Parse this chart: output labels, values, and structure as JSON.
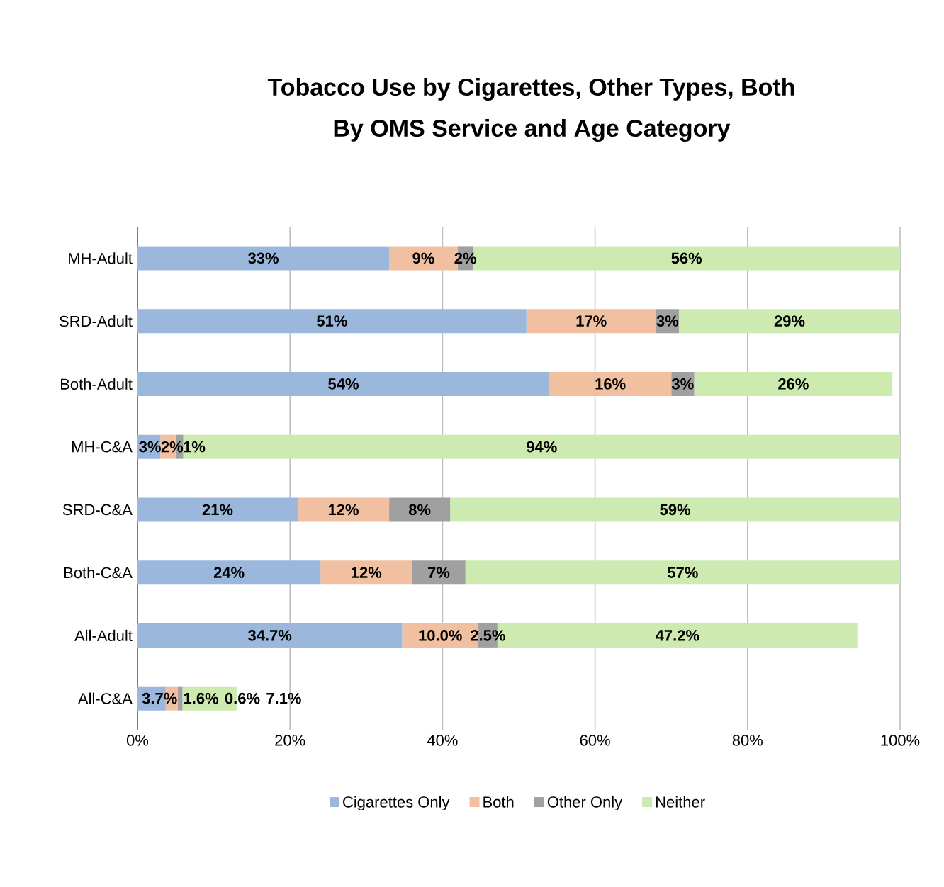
{
  "chart_data": {
    "type": "bar",
    "orientation": "horizontal",
    "stacked": true,
    "title": "Tobacco Use by Cigarettes, Other Types, Both",
    "subtitle": "By OMS Service and Age Category",
    "categories": [
      "MH-Adult",
      "SRD-Adult",
      "Both-Adult",
      "MH-C&A",
      "SRD-C&A",
      "Both-C&A",
      "All-Adult",
      "All-C&A"
    ],
    "series": [
      {
        "name": "Cigarettes Only",
        "color": "#9bb7dc",
        "values": [
          33,
          51,
          54,
          3,
          21,
          24,
          34.7,
          3.7
        ],
        "value_labels": [
          "33%",
          "51%",
          "54%",
          "3%",
          "21%",
          "24%",
          "34.7%",
          "3.7%"
        ]
      },
      {
        "name": "Both",
        "color": "#f0c0a0",
        "values": [
          9,
          17,
          16,
          2,
          12,
          12,
          10.0,
          1.6
        ],
        "value_labels": [
          "9%",
          "17%",
          "16%",
          "2%",
          "12%",
          "12%",
          "10.0%",
          "1.6%"
        ]
      },
      {
        "name": "Other Only",
        "color": "#a0a0a0",
        "values": [
          2,
          3,
          3,
          1,
          8,
          7,
          2.5,
          0.6
        ],
        "value_labels": [
          "2%",
          "3%",
          "3%",
          "1%",
          "8%",
          "7%",
          "2.5%",
          "0.6%"
        ]
      },
      {
        "name": "Neither",
        "color": "#cdeab0",
        "values": [
          56,
          29,
          26,
          94,
          59,
          57,
          47.2,
          7.1
        ],
        "value_labels": [
          "56%",
          "29%",
          "26%",
          "94%",
          "59%",
          "57%",
          "47.2%",
          "7.1%"
        ]
      }
    ],
    "xlim": [
      0,
      100
    ],
    "xticks": [
      {
        "value": 0,
        "label": "0%"
      },
      {
        "value": 20,
        "label": "20%"
      },
      {
        "value": 40,
        "label": "40%"
      },
      {
        "value": 60,
        "label": "60%"
      },
      {
        "value": 80,
        "label": "80%"
      },
      {
        "value": 100,
        "label": "100%"
      }
    ],
    "grid": "x",
    "legend": "bottom"
  }
}
